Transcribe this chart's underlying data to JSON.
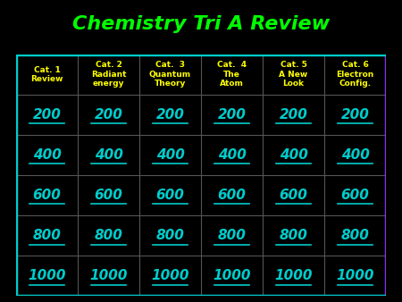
{
  "title": "Chemistry Tri A Review",
  "title_color": "#00ff00",
  "background_color": "#000000",
  "border_color_left": "#00cccc",
  "border_color_right": "#8833ee",
  "grid_color": "#555555",
  "header_text_color": "#ffff00",
  "value_text_color": "#00cccc",
  "headers": [
    "Cat. 1\nReview",
    "Cat. 2\nRadiant\nenergy",
    "Cat.  3\nQuantum\nTheory",
    "Cat.  4\nThe\nAtom",
    "Cat. 5\nA New\nLook",
    "Cat. 6\nElectron\nConfig."
  ],
  "values": [
    200,
    400,
    600,
    800,
    1000
  ],
  "n_cols": 6,
  "n_rows": 5,
  "figsize": [
    4.5,
    3.38
  ],
  "dpi": 100
}
